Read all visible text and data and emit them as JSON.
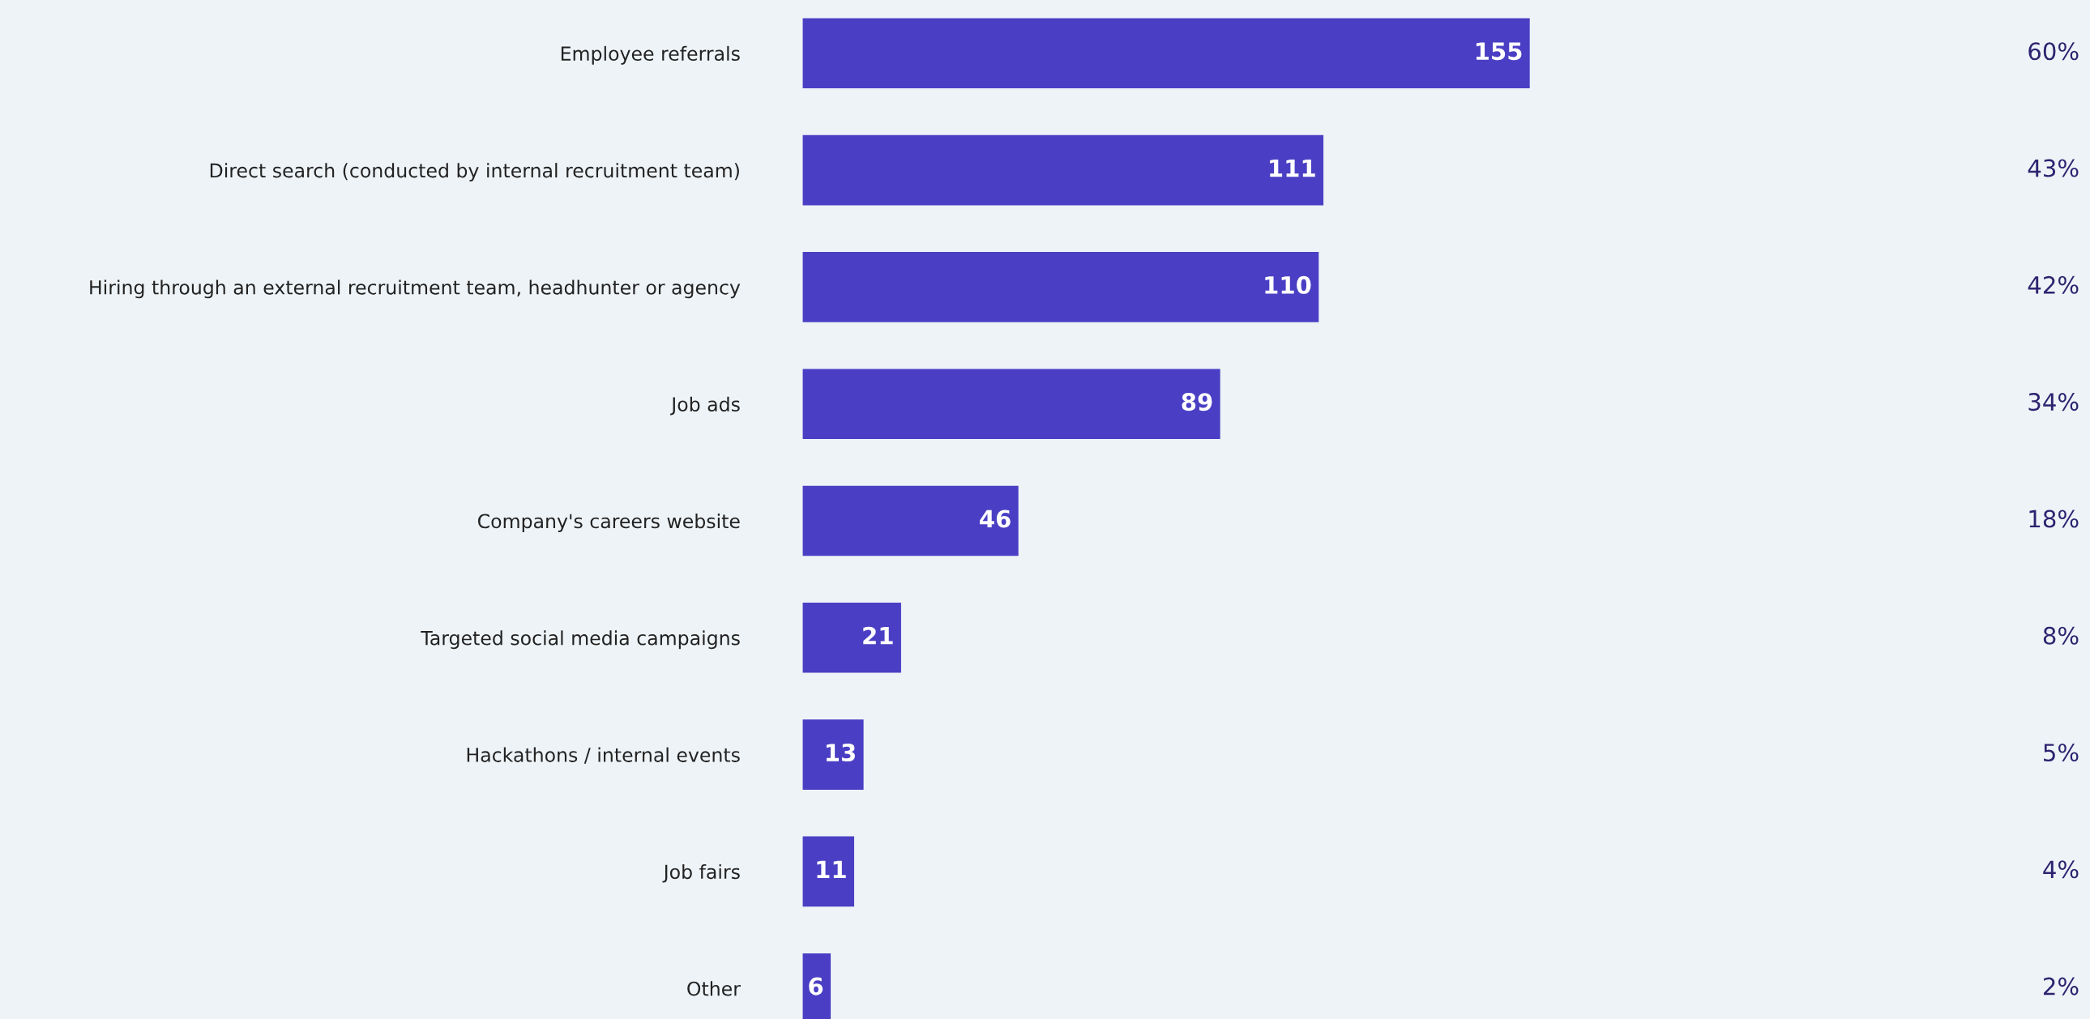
{
  "chart_data": {
    "type": "bar",
    "orientation": "horizontal",
    "categories": [
      "Employee referrals",
      "Direct search (conducted by internal recruitment team)",
      "Hiring through an external recruitment team, headhunter or agency",
      "Job ads",
      "Company's careers website",
      "Targeted social media campaigns",
      "Hackathons / internal events",
      "Job fairs",
      "Other"
    ],
    "values": [
      155,
      111,
      110,
      89,
      46,
      21,
      13,
      11,
      6
    ],
    "color": "#4a3fc4",
    "tick_labels": "y",
    "data_labels": true,
    "annotations": [
      "60%",
      "43%",
      "42%",
      "34%",
      "18%",
      "8%",
      "5%",
      "4%",
      "2%"
    ]
  }
}
